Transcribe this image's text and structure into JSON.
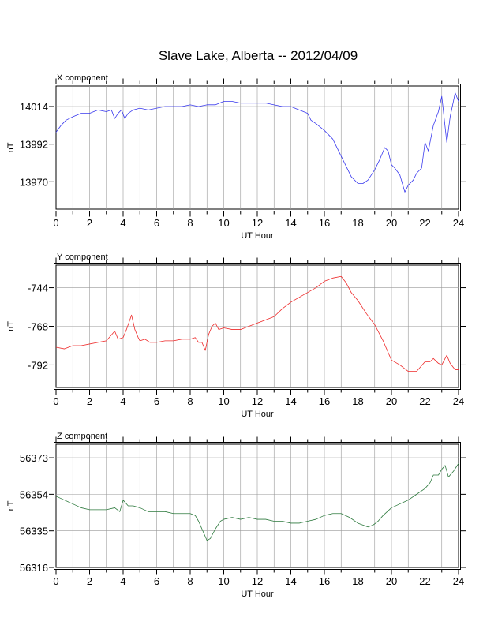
{
  "figure": {
    "title": "Slave Lake, Alberta -- 2012/04/09"
  },
  "chart_data": [
    {
      "type": "line",
      "panel_title": "X component",
      "xlabel": "UT Hour",
      "ylabel": "nT",
      "xlim": [
        0,
        24
      ],
      "ylim": [
        13954,
        14026
      ],
      "xticks": [
        0,
        2,
        4,
        6,
        8,
        10,
        12,
        14,
        16,
        18,
        20,
        22,
        24
      ],
      "yticks": [
        13970,
        13992,
        14014
      ],
      "grid": true,
      "series": [
        {
          "color": "#3a3aee",
          "x": [
            0,
            0.3,
            0.6,
            1,
            1.5,
            2,
            2.5,
            3,
            3.3,
            3.5,
            3.7,
            3.9,
            4.1,
            4.3,
            4.6,
            5,
            5.5,
            6,
            6.5,
            7,
            7.5,
            8,
            8.5,
            9,
            9.5,
            10,
            10.5,
            11,
            11.5,
            12,
            12.5,
            13,
            13.5,
            14,
            14.5,
            15,
            15.2,
            15.5,
            16,
            16.5,
            17,
            17.3,
            17.6,
            18,
            18.3,
            18.6,
            19,
            19.3,
            19.6,
            19.8,
            20,
            20.2,
            20.5,
            20.8,
            21,
            21.3,
            21.5,
            21.8,
            22,
            22.2,
            22.5,
            22.8,
            23,
            23.3,
            23.5,
            23.8,
            24
          ],
          "y": [
            13999,
            14003,
            14006,
            14008,
            14010,
            14010,
            14012,
            14011,
            14012,
            14007,
            14010,
            14012,
            14007,
            14010,
            14012,
            14013,
            14012,
            14013,
            14014,
            14014,
            14014,
            14015,
            14014,
            14015,
            14015,
            14017,
            14017,
            14016,
            14016,
            14016,
            14016,
            14015,
            14014,
            14014,
            14012,
            14010,
            14006,
            14004,
            14000,
            13995,
            13985,
            13979,
            13973,
            13969,
            13969,
            13971,
            13977,
            13983,
            13990,
            13988,
            13980,
            13978,
            13974,
            13964,
            13968,
            13971,
            13975,
            13978,
            13993,
            13988,
            14003,
            14011,
            14020,
            13993,
            14008,
            14022,
            14017
          ]
        }
      ]
    },
    {
      "type": "line",
      "panel_title": "Y component",
      "xlabel": "UT Hour",
      "ylabel": "nT",
      "xlim": [
        0,
        24
      ],
      "ylim": [
        -806,
        -730
      ],
      "xticks": [
        0,
        2,
        4,
        6,
        8,
        10,
        12,
        14,
        16,
        18,
        20,
        22,
        24
      ],
      "yticks": [
        -792,
        -768,
        -744
      ],
      "grid": true,
      "series": [
        {
          "color": "#ee2a2a",
          "x": [
            0,
            0.5,
            1,
            1.5,
            2,
            2.5,
            3,
            3.5,
            3.7,
            4,
            4.2,
            4.5,
            4.7,
            4.9,
            5,
            5.3,
            5.6,
            6,
            6.5,
            7,
            7.5,
            8,
            8.3,
            8.5,
            8.7,
            8.9,
            9.1,
            9.3,
            9.5,
            9.7,
            10,
            10.5,
            11,
            11.5,
            12,
            12.5,
            13,
            13.5,
            14,
            14.5,
            15,
            15.5,
            16,
            16.5,
            17,
            17.3,
            17.6,
            18,
            18.5,
            19,
            19.5,
            20,
            20.5,
            21,
            21.5,
            22,
            22.3,
            22.5,
            22.8,
            23,
            23.3,
            23.5,
            23.8,
            24
          ],
          "y": [
            -781,
            -782,
            -780,
            -780,
            -779,
            -778,
            -777,
            -771,
            -776,
            -775,
            -770,
            -761,
            -770,
            -775,
            -777,
            -776,
            -778,
            -778,
            -777,
            -777,
            -776,
            -776,
            -775,
            -778,
            -778,
            -783,
            -773,
            -768,
            -766,
            -770,
            -769,
            -770,
            -770,
            -768,
            -766,
            -764,
            -762,
            -757,
            -753,
            -750,
            -747,
            -744,
            -740,
            -738,
            -737,
            -741,
            -747,
            -752,
            -760,
            -767,
            -777,
            -789,
            -792,
            -796,
            -796,
            -790,
            -790,
            -788,
            -791,
            -792,
            -786,
            -791,
            -795,
            -795
          ]
        }
      ]
    },
    {
      "type": "line",
      "panel_title": "Z component",
      "xlabel": "UT Hour",
      "ylabel": "nT",
      "xlim": [
        0,
        24
      ],
      "ylim": [
        56316,
        56380
      ],
      "xticks": [
        0,
        2,
        4,
        6,
        8,
        10,
        12,
        14,
        16,
        18,
        20,
        22,
        24
      ],
      "yticks": [
        56316,
        56335,
        56354,
        56373
      ],
      "grid": true,
      "series": [
        {
          "color": "#2e7a3e",
          "x": [
            0,
            0.5,
            1,
            1.5,
            2,
            2.5,
            3,
            3.5,
            3.8,
            4,
            4.3,
            4.6,
            5,
            5.5,
            6,
            6.5,
            7,
            7.5,
            8,
            8.3,
            8.5,
            8.7,
            9,
            9.2,
            9.5,
            9.8,
            10,
            10.5,
            11,
            11.5,
            12,
            12.5,
            13,
            13.5,
            14,
            14.5,
            15,
            15.5,
            16,
            16.5,
            17,
            17.5,
            18,
            18.3,
            18.6,
            18.9,
            19.2,
            19.5,
            20,
            20.5,
            21,
            21.5,
            22,
            22.3,
            22.5,
            22.8,
            23,
            23.2,
            23.4,
            23.7,
            24
          ],
          "y": [
            56353,
            56351,
            56349,
            56347,
            56346,
            56346,
            56346,
            56347,
            56345,
            56351,
            56348,
            56348,
            56347,
            56345,
            56345,
            56345,
            56344,
            56344,
            56344,
            56343,
            56340,
            56336,
            56330,
            56331,
            56336,
            56340,
            56341,
            56342,
            56341,
            56342,
            56341,
            56341,
            56340,
            56340,
            56339,
            56339,
            56340,
            56341,
            56343,
            56344,
            56344,
            56342,
            56339,
            56338,
            56337,
            56338,
            56340,
            56343,
            56347,
            56349,
            56351,
            56354,
            56357,
            56360,
            56364,
            56364,
            56367,
            56369,
            56363,
            56366,
            56370
          ]
        }
      ]
    }
  ]
}
